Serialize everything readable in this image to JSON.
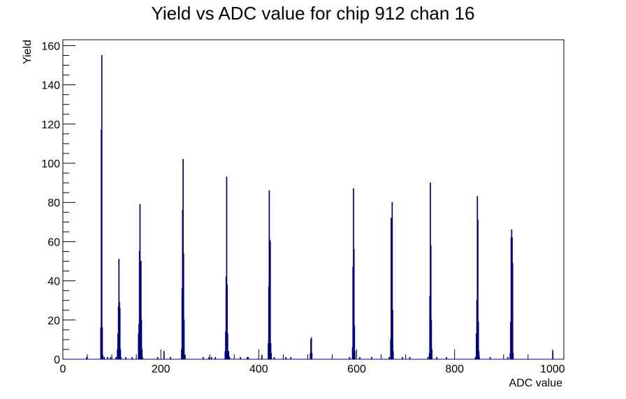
{
  "chart_data": {
    "type": "histogram",
    "title": "Yield vs ADC value for chip 912 chan 16",
    "xlabel": "ADC value",
    "ylabel": "Yield",
    "xlim": [
      0,
      1023
    ],
    "ylim": [
      0,
      163
    ],
    "x_ticks": [
      0,
      200,
      400,
      600,
      800,
      1000
    ],
    "y_ticks": [
      0,
      20,
      40,
      60,
      80,
      100,
      120,
      140,
      160
    ],
    "line_color": "#000080",
    "bins": [
      [
        48,
        1
      ],
      [
        77,
        16
      ],
      [
        78,
        117
      ],
      [
        79,
        155
      ],
      [
        80,
        16
      ],
      [
        81,
        2
      ],
      [
        84,
        1
      ],
      [
        91,
        1
      ],
      [
        97,
        1
      ],
      [
        108,
        1
      ],
      [
        111,
        5
      ],
      [
        112,
        13
      ],
      [
        113,
        27
      ],
      [
        114,
        51
      ],
      [
        115,
        29
      ],
      [
        116,
        26
      ],
      [
        117,
        5
      ],
      [
        118,
        1
      ],
      [
        128,
        1
      ],
      [
        141,
        1
      ],
      [
        154,
        13
      ],
      [
        155,
        18
      ],
      [
        156,
        55
      ],
      [
        157,
        79
      ],
      [
        158,
        33
      ],
      [
        159,
        50
      ],
      [
        160,
        20
      ],
      [
        161,
        5
      ],
      [
        162,
        1
      ],
      [
        193,
        1
      ],
      [
        206,
        4
      ],
      [
        219,
        1
      ],
      [
        242,
        5
      ],
      [
        243,
        36
      ],
      [
        244,
        76
      ],
      [
        245,
        102
      ],
      [
        246,
        54
      ],
      [
        247,
        20
      ],
      [
        248,
        2
      ],
      [
        286,
        1
      ],
      [
        298,
        1
      ],
      [
        303,
        1
      ],
      [
        311,
        1
      ],
      [
        331,
        4
      ],
      [
        332,
        14
      ],
      [
        333,
        42
      ],
      [
        334,
        93
      ],
      [
        335,
        38
      ],
      [
        336,
        13
      ],
      [
        337,
        1
      ],
      [
        338,
        4
      ],
      [
        340,
        1
      ],
      [
        362,
        1
      ],
      [
        376,
        1
      ],
      [
        378,
        1
      ],
      [
        406,
        2
      ],
      [
        419,
        8
      ],
      [
        420,
        37
      ],
      [
        421,
        86
      ],
      [
        422,
        61
      ],
      [
        423,
        60
      ],
      [
        424,
        8
      ],
      [
        425,
        3
      ],
      [
        431,
        1
      ],
      [
        455,
        1
      ],
      [
        465,
        1
      ],
      [
        505,
        3
      ],
      [
        506,
        10
      ],
      [
        507,
        11
      ],
      [
        508,
        3
      ],
      [
        585,
        1
      ],
      [
        591,
        6
      ],
      [
        592,
        47
      ],
      [
        593,
        87
      ],
      [
        594,
        56
      ],
      [
        595,
        17
      ],
      [
        596,
        4
      ],
      [
        606,
        1
      ],
      [
        630,
        1
      ],
      [
        666,
        1
      ],
      [
        669,
        10
      ],
      [
        670,
        72
      ],
      [
        671,
        32
      ],
      [
        672,
        80
      ],
      [
        673,
        25
      ],
      [
        674,
        4
      ],
      [
        693,
        1
      ],
      [
        708,
        1
      ],
      [
        745,
        1
      ],
      [
        748,
        3
      ],
      [
        749,
        32
      ],
      [
        750,
        90
      ],
      [
        751,
        58
      ],
      [
        752,
        20
      ],
      [
        753,
        5
      ],
      [
        763,
        1
      ],
      [
        783,
        1
      ],
      [
        842,
        1
      ],
      [
        844,
        13
      ],
      [
        845,
        30
      ],
      [
        846,
        83
      ],
      [
        847,
        71
      ],
      [
        848,
        19
      ],
      [
        849,
        4
      ],
      [
        850,
        1
      ],
      [
        872,
        1
      ],
      [
        908,
        1
      ],
      [
        913,
        3
      ],
      [
        914,
        19
      ],
      [
        915,
        62
      ],
      [
        916,
        66
      ],
      [
        917,
        62
      ],
      [
        918,
        49
      ],
      [
        919,
        3
      ],
      [
        1000,
        4
      ]
    ]
  }
}
